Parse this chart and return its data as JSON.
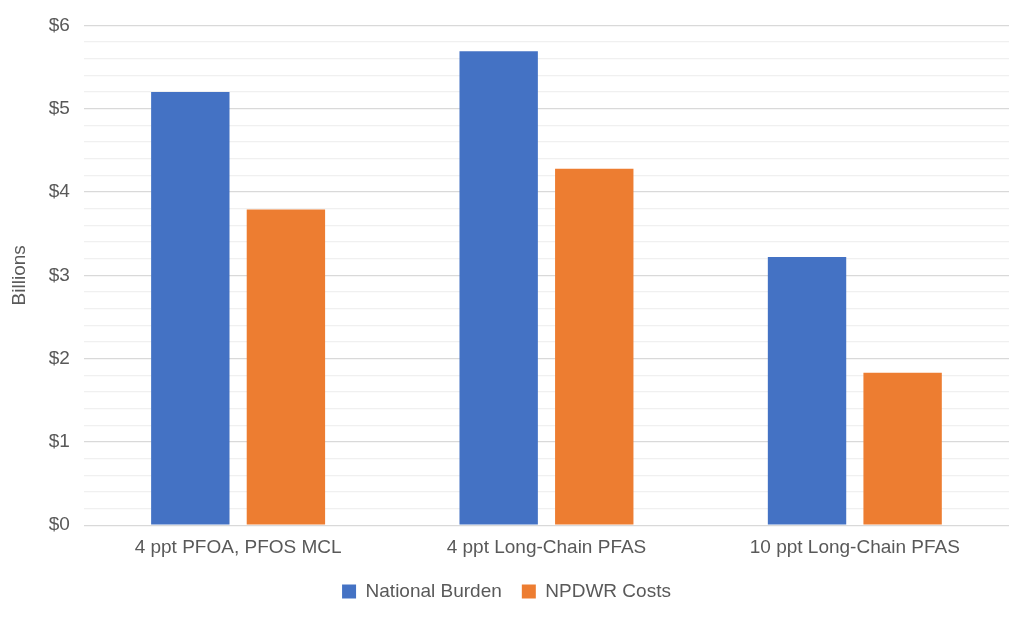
{
  "chart_data": {
    "type": "bar",
    "ylabel": "Billions",
    "categories": [
      "4 ppt PFOA, PFOS MCL",
      "4 ppt Long-Chain PFAS",
      "10 ppt Long-Chain PFAS"
    ],
    "series": [
      {
        "name": "National Burden",
        "color": "#4472c4",
        "values": [
          5.2,
          5.69,
          3.22
        ]
      },
      {
        "name": "NPDWR Costs",
        "color": "#ed7d31",
        "values": [
          3.79,
          4.28,
          1.83
        ]
      }
    ],
    "ylim": [
      0,
      6
    ],
    "yticks": [
      {
        "value": 0,
        "label": "$0"
      },
      {
        "value": 0.2,
        "label": null
      },
      {
        "value": 0.4,
        "label": null
      },
      {
        "value": 0.6,
        "label": null
      },
      {
        "value": 0.8,
        "label": null
      },
      {
        "value": 1,
        "label": "$1"
      },
      {
        "value": 1.2,
        "label": null
      },
      {
        "value": 1.4,
        "label": null
      },
      {
        "value": 1.6,
        "label": null
      },
      {
        "value": 1.8,
        "label": null
      },
      {
        "value": 2,
        "label": "$2"
      },
      {
        "value": 2.2,
        "label": null
      },
      {
        "value": 2.4,
        "label": null
      },
      {
        "value": 2.6,
        "label": null
      },
      {
        "value": 2.8,
        "label": null
      },
      {
        "value": 3,
        "label": "$3"
      },
      {
        "value": 3.2,
        "label": null
      },
      {
        "value": 3.4,
        "label": null
      },
      {
        "value": 3.6,
        "label": null
      },
      {
        "value": 3.8,
        "label": null
      },
      {
        "value": 4,
        "label": "$4"
      },
      {
        "value": 4.2,
        "label": null
      },
      {
        "value": 4.4,
        "label": null
      },
      {
        "value": 4.6,
        "label": null
      },
      {
        "value": 4.8,
        "label": null
      },
      {
        "value": 5,
        "label": "$5"
      },
      {
        "value": 5.2,
        "label": null
      },
      {
        "value": 5.4,
        "label": null
      },
      {
        "value": 5.6,
        "label": null
      },
      {
        "value": 5.8,
        "label": null
      },
      {
        "value": 6,
        "label": "$6"
      }
    ],
    "grid": "y",
    "legend": "bottom"
  }
}
